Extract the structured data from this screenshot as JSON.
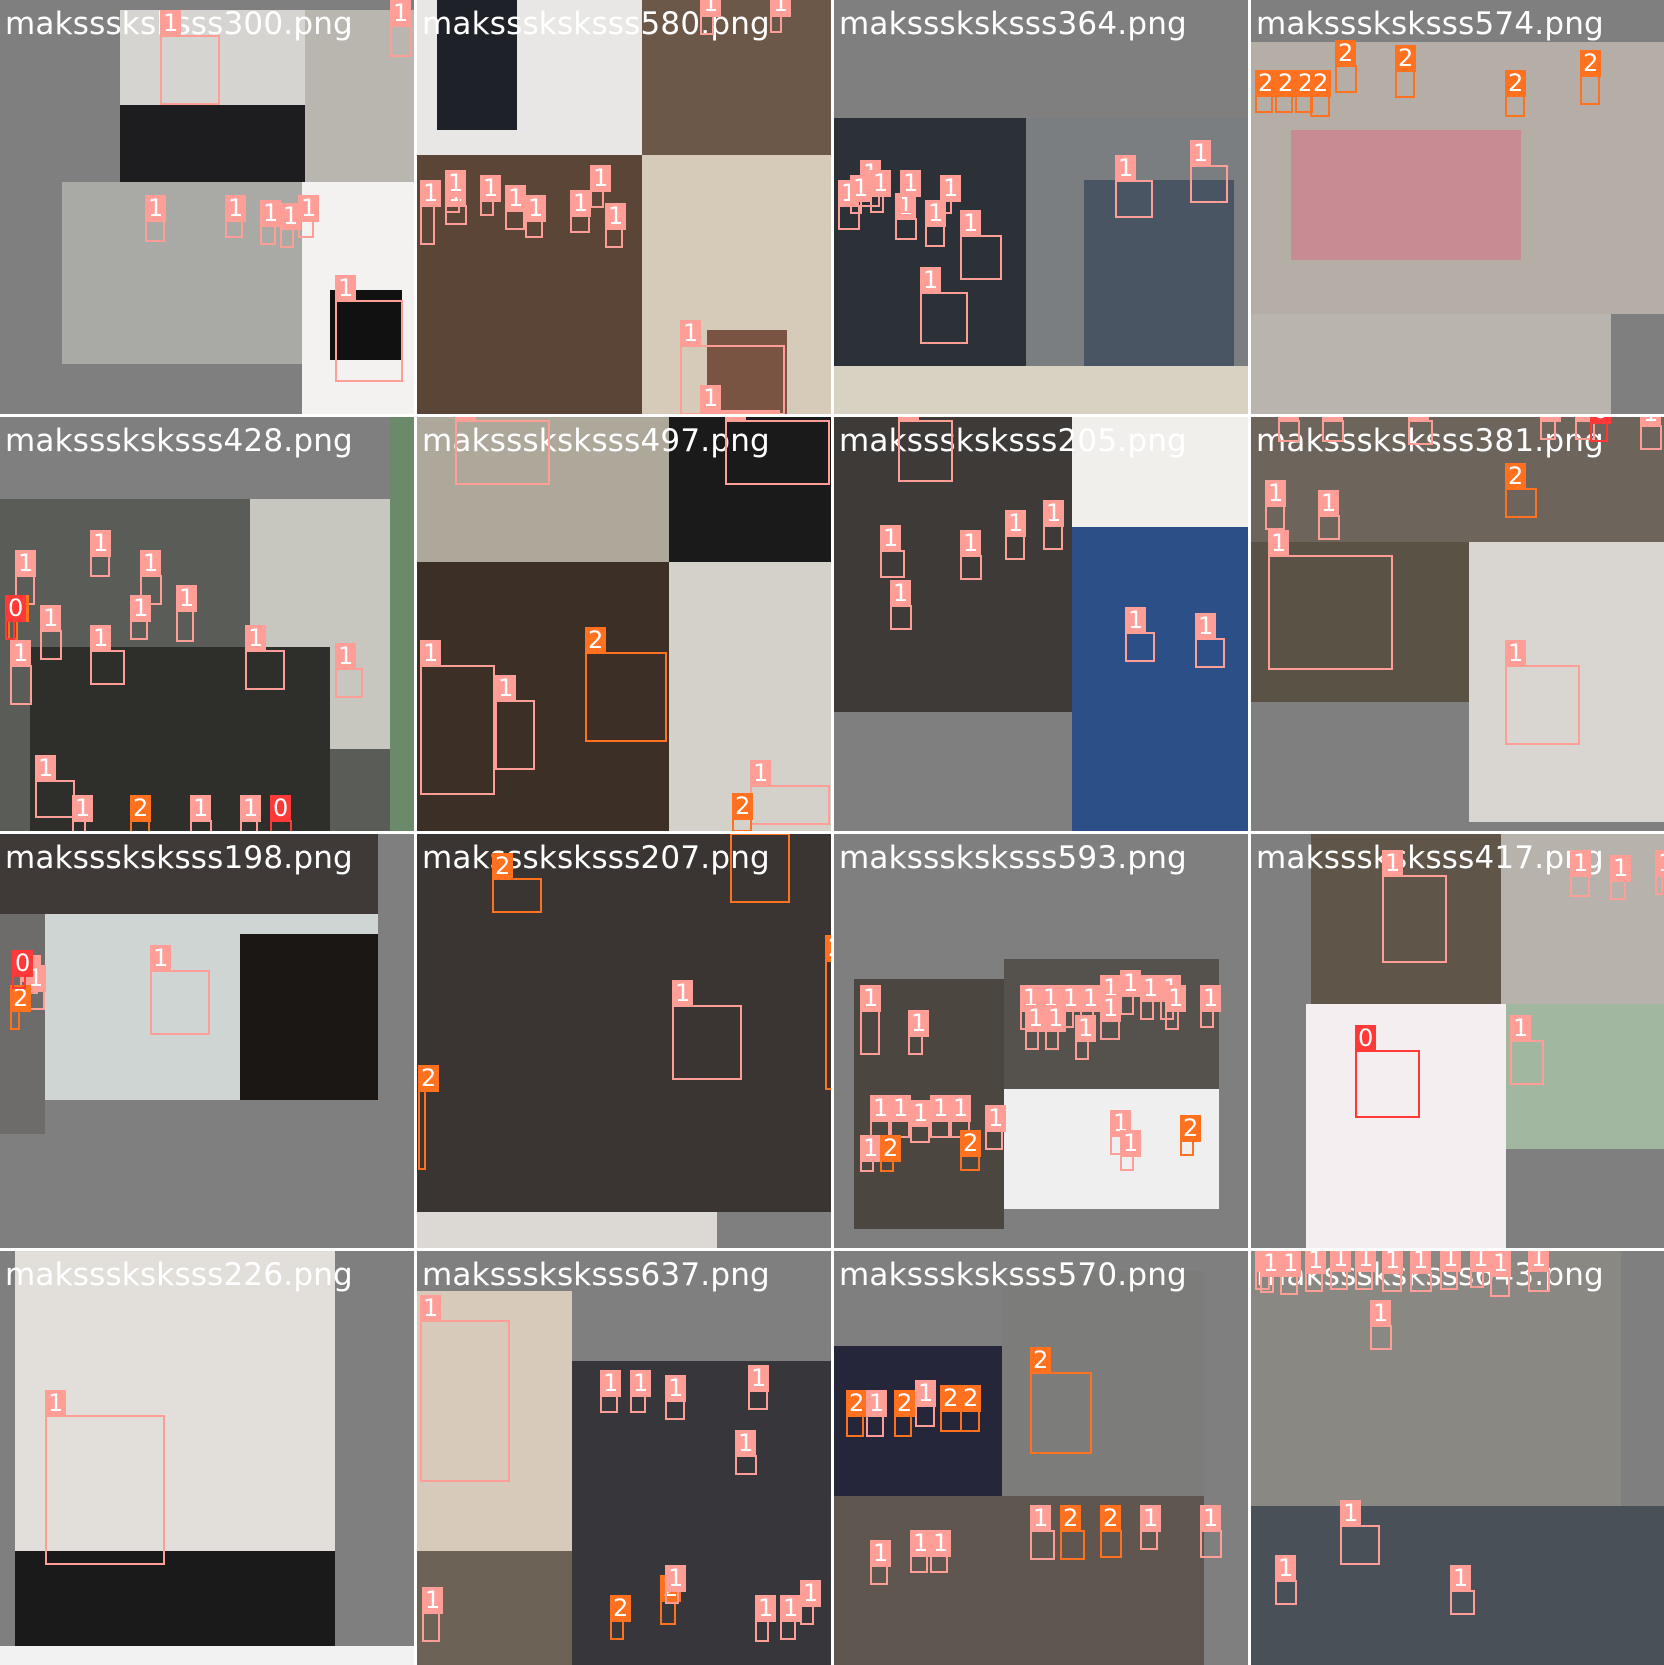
{
  "grid": {
    "columns": 4,
    "rows": 4,
    "class_colors": {
      "0": "#ff3838",
      "1": "#ff9d97",
      "2": "#ff701f"
    },
    "tiles": [
      {
        "filename": "maksssksksss300.png",
        "labels": [
          1,
          1,
          1,
          1,
          1,
          1,
          1,
          1
        ]
      },
      {
        "filename": "maksssksksss580.png",
        "labels": [
          1,
          1,
          1,
          1,
          1,
          1,
          1,
          1,
          1,
          1,
          1,
          1,
          1
        ]
      },
      {
        "filename": "maksssksksss364.png",
        "labels": [
          1,
          1,
          1,
          1,
          1,
          1,
          1,
          1,
          1,
          1,
          1,
          1
        ]
      },
      {
        "filename": "maksssksksss574.png",
        "labels": [
          2,
          2,
          2,
          2,
          2,
          2,
          2,
          2
        ]
      },
      {
        "filename": "maksssksksss428.png",
        "labels": [
          1,
          1,
          1,
          1,
          1,
          1,
          1,
          1,
          1,
          1,
          1,
          1,
          1,
          2,
          1,
          2,
          0,
          0
        ]
      },
      {
        "filename": "maksssksksss497.png",
        "labels": [
          1,
          1,
          2,
          1,
          1,
          1,
          2
        ]
      },
      {
        "filename": "maksssksksss205.png",
        "labels": [
          1,
          1,
          1,
          1,
          1,
          1,
          1,
          1
        ]
      },
      {
        "filename": "maksssksksss381.png",
        "labels": [
          1,
          1,
          1,
          1,
          1,
          0,
          1,
          2,
          1,
          1,
          1,
          1
        ]
      },
      {
        "filename": "maksssksksss198.png",
        "labels": [
          1,
          1,
          1,
          2,
          0
        ]
      },
      {
        "filename": "maksssksksss207.png",
        "labels": [
          2,
          1,
          2,
          2,
          2
        ]
      },
      {
        "filename": "maksssksksss593.png",
        "labels": [
          1,
          1,
          1,
          1,
          1,
          1,
          1,
          1,
          1,
          1,
          1,
          1,
          1,
          1,
          1,
          1,
          1,
          1,
          1,
          1,
          1,
          1,
          1,
          1,
          2,
          2,
          2,
          1
        ]
      },
      {
        "filename": "maksssksksss417.png",
        "labels": [
          1,
          1,
          1,
          1,
          0,
          1
        ]
      },
      {
        "filename": "maksssksksss226.png",
        "labels": [
          1
        ]
      },
      {
        "filename": "maksssksksss637.png",
        "labels": [
          1,
          1,
          1,
          1,
          1,
          1,
          1,
          2,
          2,
          1,
          1,
          1,
          1
        ]
      },
      {
        "filename": "maksssksksss570.png",
        "labels": [
          2,
          1,
          2,
          1,
          2,
          2,
          2,
          1,
          1,
          2,
          2,
          1,
          1,
          1,
          1
        ]
      },
      {
        "filename": "maksssksksss643.png",
        "labels": [
          1,
          1,
          1,
          1,
          1,
          1,
          1,
          1,
          1,
          1,
          1,
          1,
          1,
          1,
          1,
          1
        ]
      }
    ]
  }
}
